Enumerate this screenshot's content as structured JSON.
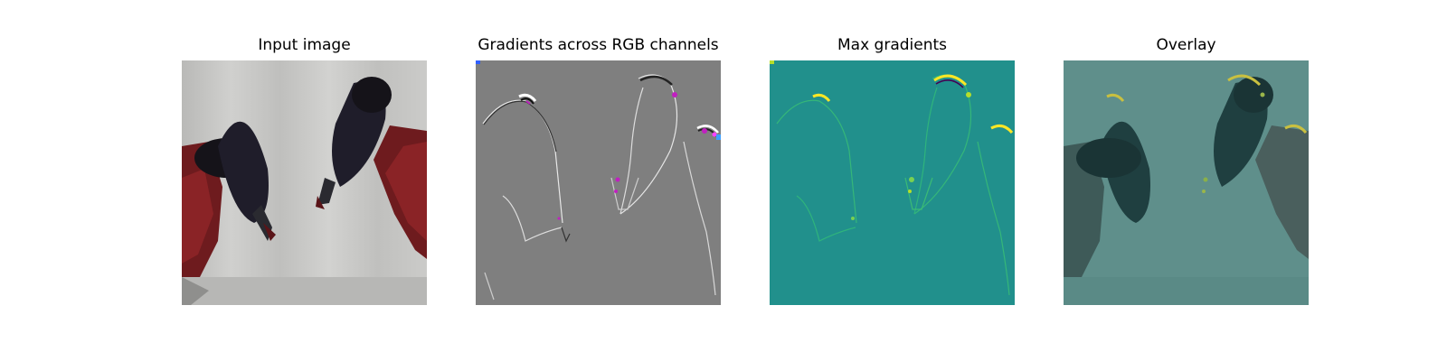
{
  "figure": {
    "panels": [
      {
        "title": "Input image"
      },
      {
        "title": "Gradients across RGB channels"
      },
      {
        "title": "Max gradients"
      },
      {
        "title": "Overlay"
      }
    ]
  },
  "colors": {
    "background": "#ffffff",
    "cloth": "#c8c8c6",
    "robot_red": "#7a1f22",
    "gripper_dark": "#1d1b26",
    "gradient_gray": "#7f7f7f",
    "viridis_base": "#21908c",
    "viridis_high": "#fde725",
    "viridis_low": "#440154",
    "overlay_tint": "#3f8f8a"
  }
}
